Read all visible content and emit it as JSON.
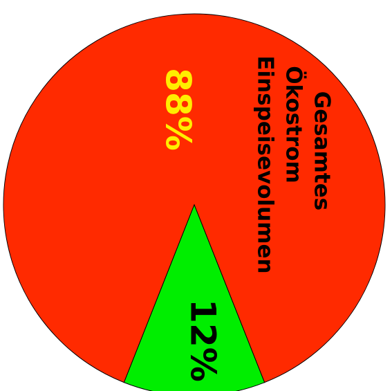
{
  "chart_data": {
    "type": "pie",
    "slices": [
      {
        "label": "Gesamtes Ökostrom Einspeisevolumen",
        "value": 88,
        "value_label": "88%",
        "color": "#ff2a00"
      },
      {
        "label": "",
        "value": 12,
        "value_label": "12%",
        "color": "#00ee00"
      }
    ],
    "title_lines": [
      "Gesamtes",
      "Ökostrom",
      "Einspeisevolumen"
    ],
    "label_colors": {
      "big_percent": "#ffee00",
      "small_percent": "#000000",
      "title": "#000000"
    },
    "text_orientation": "rotated 90° clockwise"
  }
}
